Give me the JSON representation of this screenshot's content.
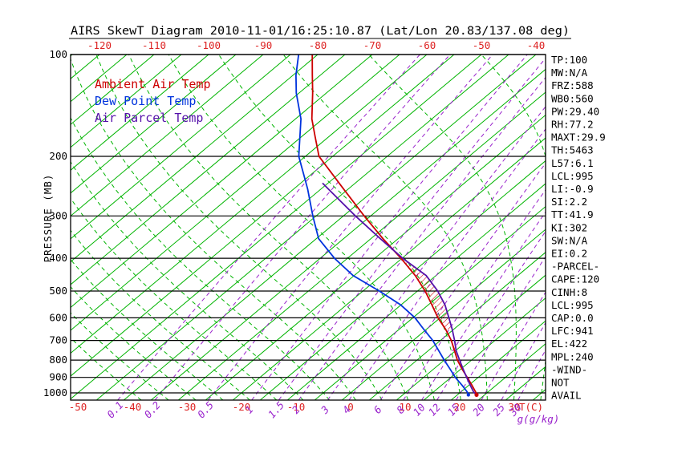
{
  "title": "AIRS SkewT Diagram 2010-11-01/16:25:10.87 (Lat/Lon 20.83/137.08 deg)",
  "colors": {
    "ambient": "#CC0000",
    "dew_point": "#0033DD",
    "parcel": "#5511AA",
    "isotherm_green": "#00B400",
    "mixing_purple": "#9922CC",
    "axis_red": "#DD2222",
    "black": "#000000"
  },
  "legend": {
    "items": [
      {
        "label": "Ambient Air Temp",
        "color_key": "ambient"
      },
      {
        "label": "Dew Point Temp",
        "color_key": "dew_point"
      },
      {
        "label": "Air Parcel Temp",
        "color_key": "parcel"
      }
    ]
  },
  "axes": {
    "pressure_axis_label": "PRESSURE (MB)",
    "pressure_ticks": [
      100,
      200,
      300,
      400,
      500,
      600,
      700,
      800,
      900,
      1000
    ],
    "top_temperature_ticks": [
      -120,
      -110,
      -100,
      -90,
      -80,
      -70,
      -60,
      -50,
      -40
    ],
    "bottom_temperature_ticks": [
      -50,
      -40,
      -30,
      -20,
      -10,
      0,
      10,
      20,
      30
    ],
    "temperature_unit_label": "T(C)",
    "mixing_ratio_ticks": [
      0.1,
      0.2,
      0.5,
      1,
      1.5,
      2,
      3,
      4,
      6,
      8,
      10,
      12,
      15,
      20,
      25,
      30
    ],
    "mixing_ratio_unit_label": "g(g/kg)"
  },
  "stats_panel": {
    "lines": [
      "TP:100",
      "MW:N/A",
      "FRZ:588",
      "WB0:560",
      "PW:29.40",
      "RH:77.2",
      "MAXT:29.9",
      "TH:5463",
      "L57:6.1",
      "LCL:995",
      "LI:-0.9",
      "SI:2.2",
      "TT:41.9",
      "KI:302",
      "SW:N/A",
      "EI:0.2",
      "-PARCEL-",
      "CAPE:120",
      "CINH:8",
      "LCL:995",
      "CAP:0.0",
      "LFC:941",
      "EL:422",
      "MPL:240",
      "-WIND-",
      "NOT",
      "AVAIL"
    ]
  },
  "chart_data": {
    "type": "line",
    "title": "AIRS SkewT Diagram 2010-11-01/16:25:10.87 (Lat/Lon 20.83/137.08 deg)",
    "x_axis": {
      "label": "Temperature (C)",
      "skewed": true,
      "top_range": [
        -120,
        -40
      ],
      "bottom_range": [
        -50,
        30
      ]
    },
    "y_axis": {
      "label": "PRESSURE (MB)",
      "scale": "log",
      "range": [
        100,
        1050
      ]
    },
    "grid": {
      "isotherms_c": {
        "min": -130,
        "max": 40,
        "step": 5
      },
      "moist_adiabats_c": {
        "min": -40,
        "max": 60,
        "step": 5
      },
      "mixing_ratio_g_kg": [
        0.1,
        0.2,
        0.5,
        1,
        1.5,
        2,
        3,
        4,
        6,
        8,
        10,
        12,
        15,
        20,
        25,
        30
      ]
    },
    "cape_hatch_pressure_range": [
      650,
      400
    ],
    "series": [
      {
        "name": "Ambient Air Temp",
        "color_key": "ambient",
        "points_p_t": [
          [
            1013,
            23.5
          ],
          [
            1000,
            23.0
          ],
          [
            950,
            20.6
          ],
          [
            900,
            18.0
          ],
          [
            850,
            15.2
          ],
          [
            800,
            12.4
          ],
          [
            750,
            9.8
          ],
          [
            700,
            7.0
          ],
          [
            650,
            3.6
          ],
          [
            600,
            -0.4
          ],
          [
            550,
            -4.3
          ],
          [
            500,
            -8.6
          ],
          [
            450,
            -13.8
          ],
          [
            400,
            -20.2
          ],
          [
            350,
            -27.8
          ],
          [
            300,
            -36.2
          ],
          [
            250,
            -45.8
          ],
          [
            200,
            -57.5
          ],
          [
            175,
            -62.5
          ],
          [
            155,
            -67.0
          ],
          [
            130,
            -72.5
          ],
          [
            115,
            -76.5
          ],
          [
            100,
            -81.0
          ]
        ]
      },
      {
        "name": "Dew Point Temp",
        "color_key": "dew_point",
        "points_p_t": [
          [
            1013,
            22.0
          ],
          [
            1000,
            21.5
          ],
          [
            950,
            18.8
          ],
          [
            900,
            15.8
          ],
          [
            850,
            13.0
          ],
          [
            800,
            10.0
          ],
          [
            750,
            6.9
          ],
          [
            700,
            3.6
          ],
          [
            650,
            -0.4
          ],
          [
            600,
            -4.6
          ],
          [
            550,
            -10.0
          ],
          [
            500,
            -17.0
          ],
          [
            450,
            -25.2
          ],
          [
            400,
            -32.4
          ],
          [
            350,
            -39.6
          ],
          [
            300,
            -45.6
          ],
          [
            250,
            -52.4
          ],
          [
            200,
            -61.2
          ],
          [
            155,
            -69.0
          ],
          [
            130,
            -75.5
          ],
          [
            115,
            -79.5
          ],
          [
            100,
            -83.5
          ]
        ]
      },
      {
        "name": "Air Parcel Temp",
        "color_key": "parcel",
        "points_p_t": [
          [
            1013,
            23.5
          ],
          [
            995,
            22.4
          ],
          [
            950,
            20.3
          ],
          [
            900,
            17.9
          ],
          [
            850,
            15.4
          ],
          [
            800,
            12.8
          ],
          [
            750,
            10.1
          ],
          [
            700,
            7.6
          ],
          [
            650,
            4.8
          ],
          [
            600,
            1.6
          ],
          [
            550,
            -1.9
          ],
          [
            500,
            -6.3
          ],
          [
            450,
            -11.8
          ],
          [
            400,
            -19.9
          ],
          [
            350,
            -28.3
          ],
          [
            300,
            -37.8
          ],
          [
            250,
            -48.6
          ],
          [
            240,
            -51.0
          ]
        ]
      }
    ]
  }
}
